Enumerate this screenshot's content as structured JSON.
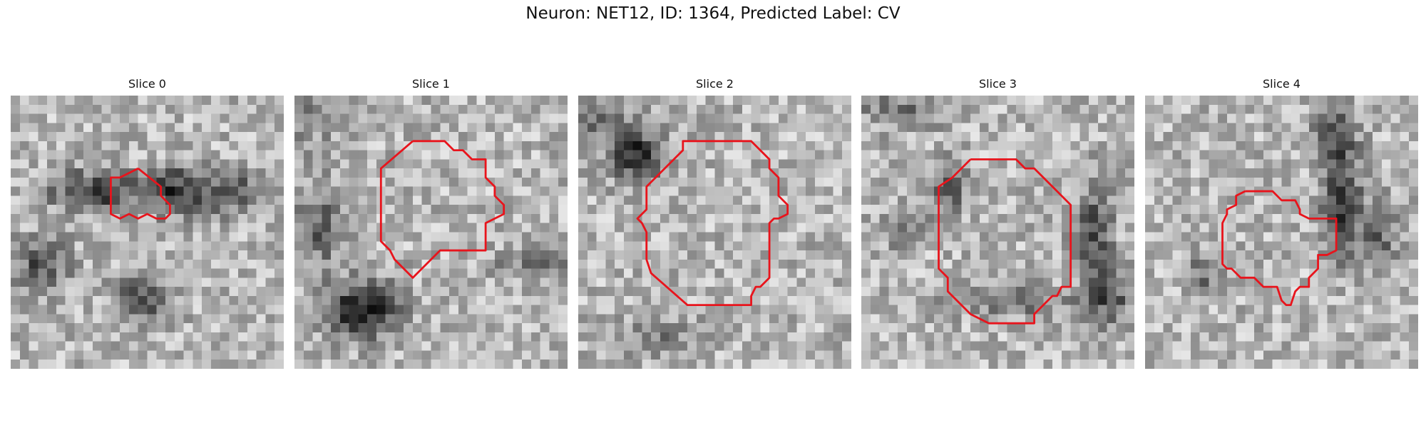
{
  "figure": {
    "title": "Neuron: NET12, ID: 1364, Predicted Label: CV"
  },
  "colors": {
    "contour": "#e8141c",
    "background": "#ffffff"
  },
  "image": {
    "grid_size": 30,
    "colormap": "grayscale"
  },
  "slices": [
    {
      "title": "Slice 0",
      "contour": [
        [
          14,
          8
        ],
        [
          12,
          9
        ],
        [
          11,
          9
        ],
        [
          11,
          13
        ],
        [
          12,
          13.5
        ],
        [
          13,
          13
        ],
        [
          14,
          13.5
        ],
        [
          15,
          13
        ],
        [
          16,
          13.5
        ],
        [
          17,
          13.5
        ],
        [
          17.5,
          13
        ],
        [
          17.5,
          12
        ],
        [
          16.5,
          11
        ],
        [
          16.5,
          10
        ],
        [
          14,
          8
        ]
      ]
    },
    {
      "title": "Slice 1",
      "contour": [
        [
          13,
          5
        ],
        [
          16.5,
          5
        ],
        [
          17.5,
          6
        ],
        [
          18.5,
          6
        ],
        [
          19.5,
          7
        ],
        [
          21,
          7
        ],
        [
          21,
          9
        ],
        [
          22,
          10
        ],
        [
          22,
          11
        ],
        [
          23,
          12
        ],
        [
          23,
          13
        ],
        [
          22,
          13.5
        ],
        [
          21,
          14
        ],
        [
          21,
          17
        ],
        [
          16,
          17
        ],
        [
          13,
          20
        ],
        [
          11,
          18
        ],
        [
          10.5,
          17
        ],
        [
          9.5,
          16
        ],
        [
          9.5,
          8
        ],
        [
          13,
          5
        ]
      ]
    },
    {
      "title": "Slice 2",
      "contour": [
        [
          12,
          5
        ],
        [
          19,
          5
        ],
        [
          21,
          7
        ],
        [
          21,
          8
        ],
        [
          22,
          9
        ],
        [
          22,
          11
        ],
        [
          23,
          12
        ],
        [
          23,
          13
        ],
        [
          22,
          13.5
        ],
        [
          21.5,
          13.5
        ],
        [
          21,
          14
        ],
        [
          21,
          20
        ],
        [
          20,
          21
        ],
        [
          19.5,
          21
        ],
        [
          19,
          22
        ],
        [
          19,
          23
        ],
        [
          12,
          23
        ],
        [
          8,
          19.5
        ],
        [
          7.5,
          18
        ],
        [
          7.5,
          15
        ],
        [
          7,
          14
        ],
        [
          6.5,
          13.5
        ],
        [
          7.5,
          12.5
        ],
        [
          7.5,
          10
        ],
        [
          11.5,
          6
        ],
        [
          11.5,
          5
        ],
        [
          12,
          5
        ]
      ]
    },
    {
      "title": "Slice 3",
      "contour": [
        [
          12,
          7
        ],
        [
          17,
          7
        ],
        [
          18,
          8
        ],
        [
          19,
          8
        ],
        [
          20,
          9
        ],
        [
          21,
          10
        ],
        [
          22,
          11
        ],
        [
          23,
          12
        ],
        [
          23,
          21
        ],
        [
          22,
          21
        ],
        [
          21.5,
          22
        ],
        [
          21,
          22
        ],
        [
          19,
          24
        ],
        [
          19,
          25
        ],
        [
          14,
          25
        ],
        [
          12,
          24
        ],
        [
          11,
          23
        ],
        [
          9.5,
          21.5
        ],
        [
          9.5,
          20
        ],
        [
          8.5,
          19
        ],
        [
          8.5,
          10
        ],
        [
          10,
          9
        ],
        [
          12,
          7
        ]
      ]
    },
    {
      "title": "Slice 4",
      "contour": [
        [
          11,
          10.5
        ],
        [
          14,
          10.5
        ],
        [
          15,
          11.5
        ],
        [
          16.5,
          11.5
        ],
        [
          17,
          12.5
        ],
        [
          17,
          13
        ],
        [
          18,
          13.5
        ],
        [
          21,
          13.5
        ],
        [
          21,
          17
        ],
        [
          20,
          17.5
        ],
        [
          19,
          17.5
        ],
        [
          19,
          19
        ],
        [
          18,
          20
        ],
        [
          18,
          21
        ],
        [
          17,
          21
        ],
        [
          16.5,
          21.5
        ],
        [
          16,
          23
        ],
        [
          15.5,
          23
        ],
        [
          15,
          22.5
        ],
        [
          14.5,
          21
        ],
        [
          13,
          21
        ],
        [
          12,
          20
        ],
        [
          10.5,
          20
        ],
        [
          9.5,
          19
        ],
        [
          9,
          19
        ],
        [
          8.5,
          18.5
        ],
        [
          8.5,
          14
        ],
        [
          9,
          13
        ],
        [
          9,
          12.5
        ],
        [
          10,
          12
        ],
        [
          10,
          11
        ],
        [
          11,
          10.5
        ]
      ]
    }
  ]
}
